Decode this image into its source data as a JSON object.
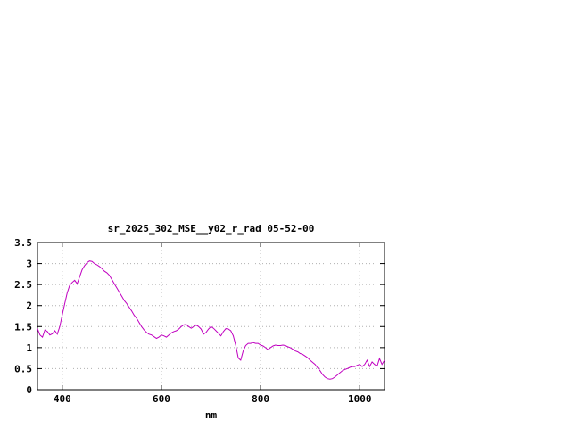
{
  "page": {
    "background_color": "#ffffff"
  },
  "chart_data": {
    "type": "line",
    "title": "sr_2025_302_MSE__y02_r_rad 05-52-00",
    "xlabel": "nm",
    "ylabel": "",
    "xlim": [
      350,
      1050
    ],
    "ylim": [
      0,
      3.5
    ],
    "x_ticks": [
      400,
      600,
      800,
      1000
    ],
    "x_tick_labels": [
      "400",
      "600",
      "800",
      "1000"
    ],
    "y_ticks": [
      0,
      0.5,
      1,
      1.5,
      2,
      2.5,
      3,
      3.5
    ],
    "y_tick_labels": [
      "0",
      "0.5",
      "1",
      "1.5",
      "2",
      "2.5",
      "3",
      "3.5"
    ],
    "grid": true,
    "legend": "none",
    "line_color": "#c000c0",
    "grid_color": "#b0b0b0",
    "border_color": "#000000",
    "text_color": "#000000",
    "series": [
      {
        "name": "sr_2025_302_MSE__y02_r_rad",
        "x": [
          350,
          355,
          360,
          365,
          370,
          375,
          380,
          385,
          390,
          395,
          400,
          405,
          410,
          415,
          420,
          425,
          430,
          435,
          440,
          445,
          450,
          455,
          460,
          465,
          470,
          475,
          480,
          485,
          490,
          495,
          500,
          505,
          510,
          515,
          520,
          525,
          530,
          535,
          540,
          545,
          550,
          555,
          560,
          565,
          570,
          575,
          580,
          585,
          590,
          595,
          600,
          605,
          610,
          615,
          620,
          625,
          630,
          635,
          640,
          645,
          650,
          655,
          660,
          665,
          670,
          675,
          680,
          685,
          690,
          695,
          700,
          705,
          710,
          715,
          720,
          725,
          730,
          735,
          740,
          745,
          750,
          755,
          760,
          765,
          770,
          775,
          780,
          785,
          790,
          795,
          800,
          805,
          810,
          815,
          820,
          825,
          830,
          835,
          840,
          845,
          850,
          855,
          860,
          865,
          870,
          875,
          880,
          885,
          890,
          895,
          900,
          905,
          910,
          915,
          920,
          925,
          930,
          935,
          940,
          945,
          950,
          955,
          960,
          965,
          970,
          975,
          980,
          985,
          990,
          995,
          1000,
          1005,
          1010,
          1015,
          1020,
          1025,
          1030,
          1035,
          1040,
          1045,
          1050
        ],
        "y": [
          1.45,
          1.3,
          1.25,
          1.42,
          1.38,
          1.3,
          1.33,
          1.4,
          1.32,
          1.5,
          1.78,
          2.05,
          2.3,
          2.48,
          2.55,
          2.6,
          2.52,
          2.68,
          2.85,
          2.95,
          3.02,
          3.06,
          3.05,
          3.0,
          2.97,
          2.93,
          2.88,
          2.82,
          2.78,
          2.72,
          2.62,
          2.52,
          2.42,
          2.32,
          2.22,
          2.12,
          2.05,
          1.96,
          1.87,
          1.77,
          1.7,
          1.6,
          1.5,
          1.42,
          1.36,
          1.32,
          1.3,
          1.26,
          1.22,
          1.25,
          1.3,
          1.28,
          1.25,
          1.3,
          1.35,
          1.38,
          1.4,
          1.44,
          1.5,
          1.54,
          1.55,
          1.5,
          1.46,
          1.5,
          1.54,
          1.5,
          1.44,
          1.32,
          1.36,
          1.44,
          1.5,
          1.46,
          1.4,
          1.34,
          1.28,
          1.38,
          1.45,
          1.44,
          1.4,
          1.28,
          1.05,
          0.75,
          0.7,
          0.92,
          1.05,
          1.1,
          1.1,
          1.12,
          1.1,
          1.1,
          1.06,
          1.04,
          1.0,
          0.95,
          1.0,
          1.04,
          1.06,
          1.05,
          1.05,
          1.06,
          1.05,
          1.02,
          1.0,
          0.96,
          0.92,
          0.9,
          0.86,
          0.84,
          0.8,
          0.76,
          0.7,
          0.65,
          0.6,
          0.52,
          0.45,
          0.36,
          0.3,
          0.26,
          0.25,
          0.26,
          0.3,
          0.35,
          0.4,
          0.45,
          0.48,
          0.5,
          0.53,
          0.55,
          0.55,
          0.58,
          0.6,
          0.55,
          0.6,
          0.7,
          0.55,
          0.66,
          0.6,
          0.56,
          0.74,
          0.6,
          0.7
        ]
      }
    ]
  }
}
